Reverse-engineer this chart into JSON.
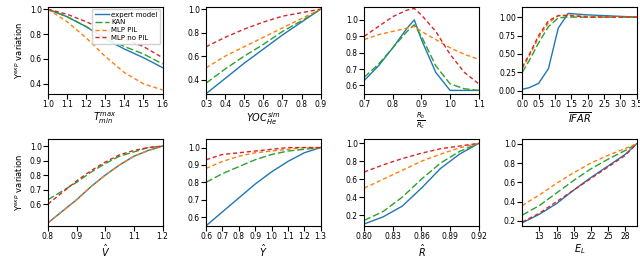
{
  "legend": [
    "expert model",
    "KAN",
    "MLP PIL",
    "MLP no PIL"
  ],
  "colors": [
    "#1f77b4",
    "#2ca02c",
    "#ff7f0e",
    "#d62728"
  ],
  "ylabel": "Y$^{exp}$ variation",
  "subplots": [
    {
      "xlabel": "$T^{max}_{min}$",
      "xlim": [
        1.0,
        1.6
      ],
      "ylim": [
        0.32,
        1.02
      ],
      "yticks": [
        0.4,
        0.6,
        0.8,
        1.0
      ],
      "xticks": [
        1.0,
        1.1,
        1.2,
        1.3,
        1.4,
        1.5,
        1.6
      ],
      "row": 0,
      "col": 0,
      "x": [
        1.0,
        1.1,
        1.2,
        1.3,
        1.4,
        1.5,
        1.6
      ],
      "y_expert": [
        1.0,
        0.94,
        0.86,
        0.76,
        0.68,
        0.61,
        0.53
      ],
      "y_kan": [
        1.0,
        0.94,
        0.86,
        0.77,
        0.7,
        0.64,
        0.56
      ],
      "y_mlp": [
        1.0,
        0.9,
        0.77,
        0.62,
        0.49,
        0.4,
        0.35
      ],
      "y_mlpnp": [
        1.0,
        0.96,
        0.9,
        0.83,
        0.76,
        0.7,
        0.61
      ]
    },
    {
      "xlabel": "$YOC^{sim}_{He}$",
      "xlim": [
        0.3,
        0.9
      ],
      "ylim": [
        0.28,
        1.02
      ],
      "yticks": [
        0.4,
        0.6,
        0.8,
        1.0
      ],
      "xticks": [
        0.3,
        0.4,
        0.5,
        0.6,
        0.7,
        0.8,
        0.9
      ],
      "row": 0,
      "col": 1,
      "x": [
        0.3,
        0.4,
        0.5,
        0.6,
        0.7,
        0.8,
        0.9
      ],
      "y_expert": [
        0.28,
        0.41,
        0.54,
        0.66,
        0.78,
        0.89,
        1.0
      ],
      "y_kan": [
        0.37,
        0.49,
        0.6,
        0.7,
        0.81,
        0.9,
        1.0
      ],
      "y_mlp": [
        0.5,
        0.6,
        0.68,
        0.76,
        0.84,
        0.92,
        1.0
      ],
      "y_mlpnp": [
        0.68,
        0.76,
        0.83,
        0.89,
        0.94,
        0.97,
        1.0
      ]
    },
    {
      "xlabel": "$\\frac{R_b}{R_c}$",
      "xlim": [
        0.7,
        1.1
      ],
      "ylim": [
        0.55,
        1.08
      ],
      "yticks": [
        0.6,
        0.7,
        0.8,
        0.9,
        1.0
      ],
      "xticks": [
        0.7,
        0.8,
        0.9,
        1.0,
        1.1
      ],
      "row": 0,
      "col": 2,
      "x": [
        0.7,
        0.75,
        0.8,
        0.85,
        0.875,
        0.9,
        0.95,
        1.0,
        1.05,
        1.1
      ],
      "y_expert": [
        0.63,
        0.72,
        0.83,
        0.95,
        1.0,
        0.88,
        0.68,
        0.57,
        0.57,
        0.57
      ],
      "y_kan": [
        0.65,
        0.73,
        0.83,
        0.93,
        0.97,
        0.9,
        0.72,
        0.61,
        0.58,
        0.57
      ],
      "y_mlp": [
        0.88,
        0.91,
        0.93,
        0.95,
        0.96,
        0.93,
        0.88,
        0.83,
        0.79,
        0.76
      ],
      "y_mlpnp": [
        0.9,
        0.96,
        1.02,
        1.06,
        1.07,
        1.03,
        0.93,
        0.79,
        0.68,
        0.61
      ]
    },
    {
      "xlabel": "$\\overline{IFAR}$",
      "xlim": [
        0.0,
        3.5
      ],
      "ylim": [
        -0.04,
        1.14
      ],
      "yticks": [
        0.0,
        0.25,
        0.5,
        0.75,
        1.0
      ],
      "xticks": [
        0.0,
        0.5,
        1.0,
        1.5,
        2.0,
        2.5,
        3.0,
        3.5
      ],
      "row": 0,
      "col": 3,
      "x": [
        0.0,
        0.2,
        0.5,
        0.8,
        1.1,
        1.4,
        2.0,
        3.0,
        3.5
      ],
      "y_expert": [
        0.02,
        0.04,
        0.1,
        0.3,
        0.85,
        1.05,
        1.03,
        1.01,
        1.0
      ],
      "y_kan": [
        0.25,
        0.4,
        0.65,
        0.87,
        0.99,
        1.0,
        1.0,
        1.0,
        1.0
      ],
      "y_mlp": [
        0.3,
        0.46,
        0.72,
        0.92,
        1.02,
        1.03,
        1.01,
        1.0,
        1.0
      ],
      "y_mlpnp": [
        0.32,
        0.48,
        0.75,
        0.95,
        1.02,
        1.02,
        1.0,
        1.0,
        1.0
      ]
    },
    {
      "xlabel": "$\\hat{V}$",
      "xlim": [
        0.8,
        1.2
      ],
      "ylim": [
        0.45,
        1.05
      ],
      "yticks": [
        0.6,
        0.7,
        0.8,
        0.9,
        1.0
      ],
      "xticks": [
        0.8,
        0.9,
        1.0,
        1.1,
        1.2
      ],
      "row": 1,
      "col": 0,
      "x": [
        0.8,
        0.85,
        0.9,
        0.95,
        1.0,
        1.05,
        1.1,
        1.15,
        1.2
      ],
      "y_expert": [
        0.47,
        0.55,
        0.63,
        0.72,
        0.8,
        0.87,
        0.93,
        0.97,
        1.0
      ],
      "y_kan": [
        0.63,
        0.69,
        0.75,
        0.82,
        0.88,
        0.93,
        0.96,
        0.99,
        1.0
      ],
      "y_mlp": [
        0.47,
        0.55,
        0.63,
        0.72,
        0.8,
        0.87,
        0.93,
        0.97,
        1.0
      ],
      "y_mlpnp": [
        0.6,
        0.68,
        0.76,
        0.83,
        0.89,
        0.94,
        0.97,
        0.99,
        1.0
      ]
    },
    {
      "xlabel": "$\\hat{Y}$",
      "xlim": [
        0.6,
        1.3
      ],
      "ylim": [
        0.55,
        1.05
      ],
      "yticks": [
        0.6,
        0.7,
        0.8,
        0.9,
        1.0
      ],
      "xticks": [
        0.6,
        0.7,
        0.8,
        0.9,
        1.0,
        1.1,
        1.2,
        1.3
      ],
      "row": 1,
      "col": 1,
      "x": [
        0.6,
        0.7,
        0.8,
        0.9,
        1.0,
        1.1,
        1.2,
        1.3
      ],
      "y_expert": [
        0.55,
        0.63,
        0.71,
        0.79,
        0.86,
        0.92,
        0.97,
        1.0
      ],
      "y_kan": [
        0.8,
        0.85,
        0.89,
        0.93,
        0.96,
        0.98,
        0.99,
        1.0
      ],
      "y_mlp": [
        0.88,
        0.92,
        0.95,
        0.97,
        0.98,
        0.99,
        1.0,
        1.0
      ],
      "y_mlpnp": [
        0.93,
        0.96,
        0.97,
        0.98,
        0.99,
        1.0,
        1.0,
        1.0
      ]
    },
    {
      "xlabel": "$\\hat{R}$",
      "xlim": [
        0.8,
        0.92
      ],
      "ylim": [
        0.08,
        1.05
      ],
      "yticks": [
        0.2,
        0.4,
        0.6,
        0.8,
        1.0
      ],
      "xticks": [
        0.8,
        0.83,
        0.86,
        0.89,
        0.92
      ],
      "row": 1,
      "col": 2,
      "x": [
        0.8,
        0.82,
        0.84,
        0.86,
        0.88,
        0.9,
        0.92
      ],
      "y_expert": [
        0.1,
        0.18,
        0.3,
        0.5,
        0.72,
        0.88,
        1.0
      ],
      "y_kan": [
        0.14,
        0.24,
        0.4,
        0.6,
        0.78,
        0.91,
        1.0
      ],
      "y_mlp": [
        0.5,
        0.6,
        0.7,
        0.8,
        0.88,
        0.95,
        1.0
      ],
      "y_mlpnp": [
        0.68,
        0.76,
        0.83,
        0.89,
        0.94,
        0.97,
        1.0
      ]
    },
    {
      "xlabel": "$E_L$",
      "xlim": [
        10,
        30
      ],
      "ylim": [
        0.15,
        1.05
      ],
      "yticks": [
        0.2,
        0.4,
        0.6,
        0.8,
        1.0
      ],
      "xticks": [
        13,
        16,
        19,
        22,
        25,
        28
      ],
      "row": 1,
      "col": 3,
      "x": [
        10,
        13,
        16,
        19,
        22,
        25,
        28,
        30
      ],
      "y_expert": [
        0.18,
        0.27,
        0.38,
        0.52,
        0.65,
        0.77,
        0.89,
        1.0
      ],
      "y_kan": [
        0.26,
        0.36,
        0.49,
        0.62,
        0.74,
        0.84,
        0.93,
        1.0
      ],
      "y_mlp": [
        0.36,
        0.47,
        0.59,
        0.7,
        0.8,
        0.88,
        0.95,
        1.0
      ],
      "y_mlpnp": [
        0.19,
        0.28,
        0.4,
        0.52,
        0.64,
        0.76,
        0.88,
        1.0
      ]
    }
  ]
}
